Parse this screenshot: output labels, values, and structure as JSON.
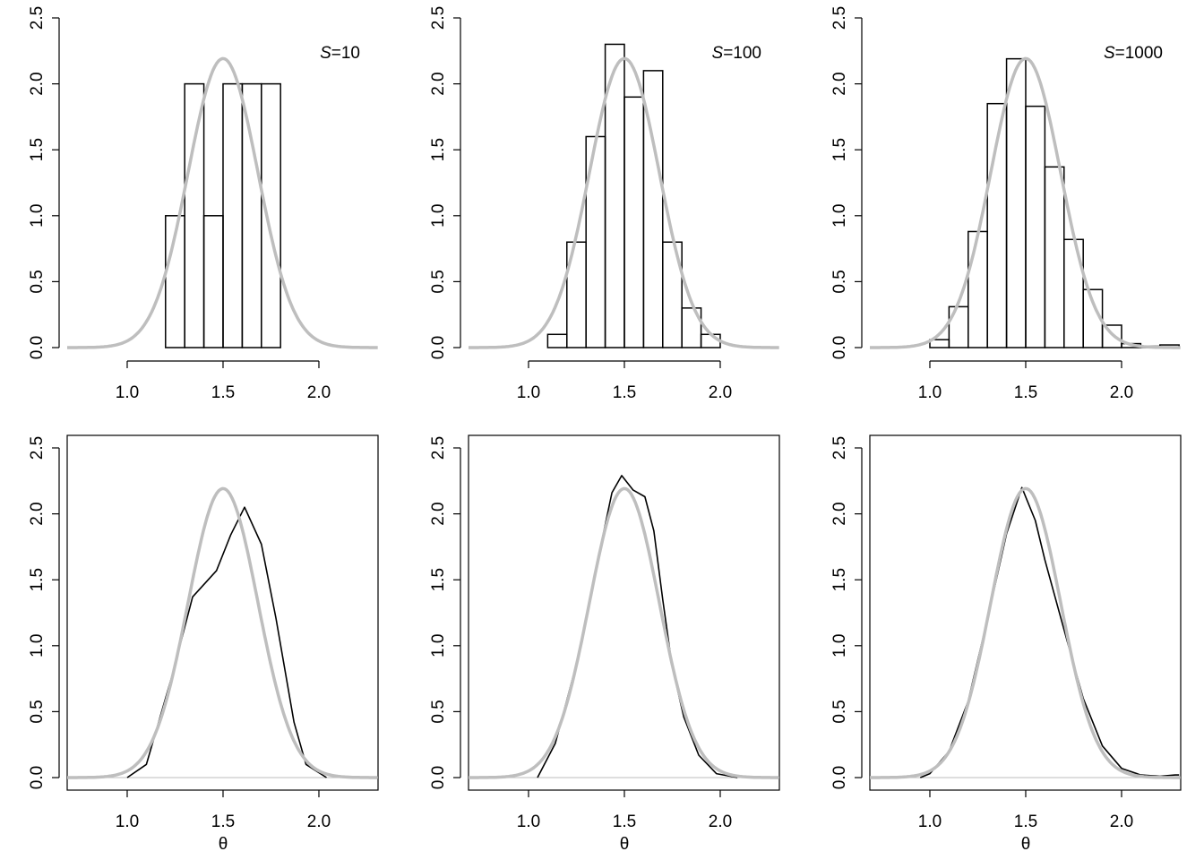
{
  "chart_data": [
    {
      "type": "bar",
      "panel": "histogram",
      "label_prefix": "S",
      "label_value": "=10",
      "bin_width": 0.1,
      "bins_start": [
        1.2,
        1.3,
        1.4,
        1.5,
        1.6,
        1.7
      ],
      "values": [
        1.0,
        2.0,
        1.0,
        2.0,
        2.0,
        2.0
      ]
    },
    {
      "type": "bar",
      "panel": "histogram",
      "label_prefix": "S",
      "label_value": "=100",
      "bin_width": 0.1,
      "bins_start": [
        1.1,
        1.2,
        1.3,
        1.4,
        1.5,
        1.6,
        1.7,
        1.8,
        1.9
      ],
      "values": [
        0.1,
        0.8,
        1.6,
        2.3,
        1.9,
        2.1,
        0.8,
        0.3,
        0.1
      ]
    },
    {
      "type": "bar",
      "panel": "histogram",
      "label_prefix": "S",
      "label_value": "=1000",
      "bin_width": 0.1,
      "bins_start": [
        1.0,
        1.1,
        1.2,
        1.3,
        1.4,
        1.5,
        1.6,
        1.7,
        1.8,
        1.9,
        2.0,
        2.1,
        2.2
      ],
      "values": [
        0.06,
        0.31,
        0.88,
        1.85,
        2.19,
        1.83,
        1.37,
        0.82,
        0.44,
        0.17,
        0.03,
        0.01,
        0.02
      ]
    },
    {
      "type": "line",
      "panel": "density",
      "xlabel": "θ",
      "points": [
        [
          1.0,
          0.0
        ],
        [
          1.1,
          0.1
        ],
        [
          1.232,
          0.76
        ],
        [
          1.341,
          1.37
        ],
        [
          1.466,
          1.57
        ],
        [
          1.54,
          1.84
        ],
        [
          1.612,
          2.05
        ],
        [
          1.7,
          1.77
        ],
        [
          1.776,
          1.21
        ],
        [
          1.87,
          0.42
        ],
        [
          1.933,
          0.1
        ],
        [
          2.04,
          0.0
        ]
      ]
    },
    {
      "type": "line",
      "panel": "density",
      "xlabel": "θ",
      "points": [
        [
          1.047,
          0.0
        ],
        [
          1.14,
          0.26
        ],
        [
          1.248,
          0.85
        ],
        [
          1.36,
          1.64
        ],
        [
          1.435,
          2.16
        ],
        [
          1.486,
          2.29
        ],
        [
          1.546,
          2.18
        ],
        [
          1.607,
          2.13
        ],
        [
          1.654,
          1.87
        ],
        [
          1.7,
          1.35
        ],
        [
          1.748,
          0.85
        ],
        [
          1.81,
          0.46
        ],
        [
          1.888,
          0.17
        ],
        [
          1.98,
          0.03
        ],
        [
          2.09,
          0.0
        ]
      ]
    },
    {
      "type": "line",
      "panel": "density",
      "xlabel": "θ",
      "points": [
        [
          0.95,
          0.0
        ],
        [
          1.0,
          0.03
        ],
        [
          1.1,
          0.2
        ],
        [
          1.2,
          0.58
        ],
        [
          1.3,
          1.2
        ],
        [
          1.4,
          1.85
        ],
        [
          1.48,
          2.2
        ],
        [
          1.55,
          1.95
        ],
        [
          1.6,
          1.65
        ],
        [
          1.7,
          1.12
        ],
        [
          1.8,
          0.6
        ],
        [
          1.9,
          0.24
        ],
        [
          2.0,
          0.07
        ],
        [
          2.1,
          0.02
        ],
        [
          2.2,
          0.01
        ],
        [
          2.28,
          0.02
        ],
        [
          2.3,
          0.02
        ]
      ]
    }
  ],
  "reference_density": {
    "mean": 1.5,
    "sd": 0.182,
    "color": "#bebebe"
  },
  "axes": {
    "xlim": [
      0.687,
      2.313
    ],
    "ylim": [
      0,
      2.5
    ],
    "xticks": [
      "1.0",
      "1.5",
      "2.0"
    ],
    "xtick_values": [
      1.0,
      1.5,
      2.0
    ],
    "yticks": [
      "0.0",
      "0.5",
      "1.0",
      "1.5",
      "2.0",
      "2.5"
    ],
    "ytick_values": [
      0,
      0.5,
      1.0,
      1.5,
      2.0,
      2.5
    ]
  }
}
